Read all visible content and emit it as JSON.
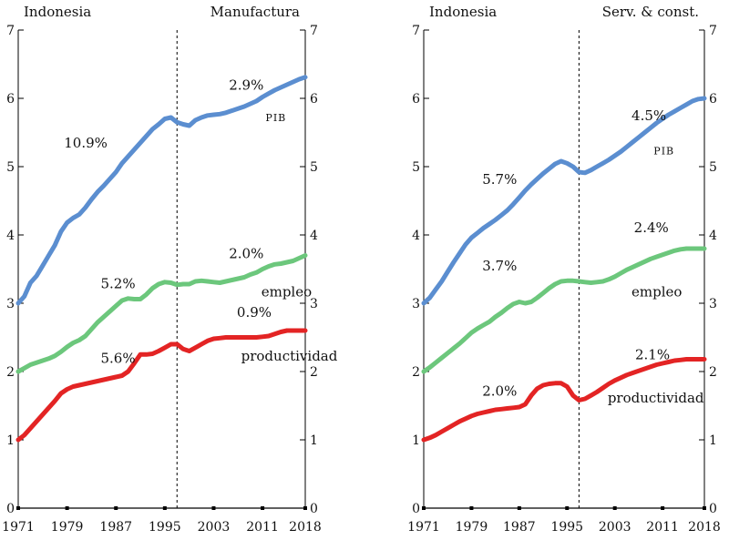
{
  "colors": {
    "pib": "#5b8ed0",
    "empleo": "#6cc77c",
    "productividad": "#e32424",
    "axis": "#000000"
  },
  "chart_data": [
    {
      "type": "line",
      "header_left": "Indonesia",
      "header_right": "Manufactura",
      "x_ticks": [
        "1971",
        "1979",
        "1987",
        "1995",
        "2003",
        "2011",
        "2018"
      ],
      "y_ticks": [
        "0",
        "1",
        "2",
        "3",
        "4",
        "5",
        "6",
        "7"
      ],
      "xlim": [
        1971,
        2018
      ],
      "ylim": [
        0,
        7
      ],
      "grid": false,
      "break_year": 1997,
      "series": [
        {
          "name": "PIB",
          "key": "pib",
          "x": [
            1971,
            1972,
            1973,
            1974,
            1975,
            1976,
            1977,
            1978,
            1979,
            1980,
            1981,
            1982,
            1983,
            1984,
            1985,
            1986,
            1987,
            1988,
            1989,
            1990,
            1991,
            1992,
            1993,
            1994,
            1995,
            1996,
            1997,
            1998,
            1999,
            2000,
            2001,
            2002,
            2003,
            2004,
            2005,
            2006,
            2007,
            2008,
            2009,
            2010,
            2011,
            2012,
            2013,
            2014,
            2015,
            2016,
            2017,
            2018
          ],
          "values": [
            3.0,
            3.1,
            3.3,
            3.4,
            3.55,
            3.7,
            3.85,
            4.05,
            4.18,
            4.25,
            4.3,
            4.4,
            4.52,
            4.63,
            4.72,
            4.82,
            4.92,
            5.05,
            5.15,
            5.25,
            5.35,
            5.45,
            5.55,
            5.62,
            5.7,
            5.72,
            5.65,
            5.62,
            5.6,
            5.68,
            5.72,
            5.75,
            5.76,
            5.77,
            5.79,
            5.82,
            5.85,
            5.88,
            5.92,
            5.96,
            6.02,
            6.07,
            6.12,
            6.16,
            6.2,
            6.24,
            6.28,
            6.31
          ]
        },
        {
          "name": "empleo",
          "key": "empleo",
          "x": [
            1971,
            1972,
            1973,
            1974,
            1975,
            1976,
            1977,
            1978,
            1979,
            1980,
            1981,
            1982,
            1983,
            1984,
            1985,
            1986,
            1987,
            1988,
            1989,
            1990,
            1991,
            1992,
            1993,
            1994,
            1995,
            1996,
            1997,
            1998,
            1999,
            2000,
            2001,
            2002,
            2003,
            2004,
            2005,
            2006,
            2007,
            2008,
            2009,
            2010,
            2011,
            2012,
            2013,
            2014,
            2015,
            2016,
            2017,
            2018
          ],
          "values": [
            2.0,
            2.05,
            2.1,
            2.13,
            2.16,
            2.19,
            2.23,
            2.29,
            2.36,
            2.42,
            2.46,
            2.52,
            2.62,
            2.72,
            2.8,
            2.88,
            2.96,
            3.04,
            3.07,
            3.06,
            3.06,
            3.13,
            3.22,
            3.28,
            3.31,
            3.3,
            3.27,
            3.28,
            3.28,
            3.32,
            3.33,
            3.32,
            3.31,
            3.3,
            3.32,
            3.34,
            3.36,
            3.38,
            3.42,
            3.45,
            3.5,
            3.54,
            3.57,
            3.58,
            3.6,
            3.62,
            3.66,
            3.7
          ]
        },
        {
          "name": "productividad",
          "key": "productividad",
          "x": [
            1971,
            1972,
            1973,
            1974,
            1975,
            1976,
            1977,
            1978,
            1979,
            1980,
            1981,
            1982,
            1983,
            1984,
            1985,
            1986,
            1987,
            1988,
            1989,
            1990,
            1991,
            1992,
            1993,
            1994,
            1995,
            1996,
            1997,
            1998,
            1999,
            2000,
            2001,
            2002,
            2003,
            2004,
            2005,
            2006,
            2007,
            2008,
            2009,
            2010,
            2011,
            2012,
            2013,
            2014,
            2015,
            2016,
            2017,
            2018
          ],
          "values": [
            1.0,
            1.07,
            1.17,
            1.27,
            1.37,
            1.47,
            1.57,
            1.68,
            1.74,
            1.78,
            1.8,
            1.82,
            1.84,
            1.86,
            1.88,
            1.9,
            1.92,
            1.94,
            2.0,
            2.12,
            2.25,
            2.25,
            2.26,
            2.3,
            2.35,
            2.4,
            2.4,
            2.33,
            2.3,
            2.35,
            2.4,
            2.45,
            2.48,
            2.49,
            2.5,
            2.5,
            2.5,
            2.5,
            2.5,
            2.5,
            2.51,
            2.52,
            2.55,
            2.58,
            2.6,
            2.6,
            2.6,
            2.6
          ]
        }
      ],
      "annotations": [
        {
          "text": "10.9%",
          "x": 1978.5,
          "y": 5.28
        },
        {
          "text": "2.9%",
          "x": 2005.5,
          "y": 6.13
        },
        {
          "text": "PIB",
          "x": 2011.5,
          "y": 5.67,
          "small": true
        },
        {
          "text": "5.2%",
          "x": 1984.5,
          "y": 3.22
        },
        {
          "text": "2.0%",
          "x": 2005.5,
          "y": 3.66
        },
        {
          "text": "empleo",
          "x": 2010.8,
          "y": 3.1
        },
        {
          "text": "5.6%",
          "x": 1984.5,
          "y": 2.13
        },
        {
          "text": "0.9%",
          "x": 2006.8,
          "y": 2.8
        },
        {
          "text": "productividad",
          "x": 2007.5,
          "y": 2.16
        }
      ]
    },
    {
      "type": "line",
      "header_left": "Indonesia",
      "header_right": "Serv. & const.",
      "x_ticks": [
        "1971",
        "1979",
        "1987",
        "1995",
        "2003",
        "2011",
        "2018"
      ],
      "y_ticks": [
        "0",
        "1",
        "2",
        "3",
        "4",
        "5",
        "6",
        "7"
      ],
      "xlim": [
        1971,
        2018
      ],
      "ylim": [
        0,
        7
      ],
      "grid": false,
      "break_year": 1997,
      "series": [
        {
          "name": "PIB",
          "key": "pib",
          "x": [
            1971,
            1972,
            1973,
            1974,
            1975,
            1976,
            1977,
            1978,
            1979,
            1980,
            1981,
            1982,
            1983,
            1984,
            1985,
            1986,
            1987,
            1988,
            1989,
            1990,
            1991,
            1992,
            1993,
            1994,
            1995,
            1996,
            1997,
            1998,
            1999,
            2000,
            2001,
            2002,
            2003,
            2004,
            2005,
            2006,
            2007,
            2008,
            2009,
            2010,
            2011,
            2012,
            2013,
            2014,
            2015,
            2016,
            2017,
            2018
          ],
          "values": [
            3.0,
            3.08,
            3.2,
            3.32,
            3.46,
            3.6,
            3.73,
            3.86,
            3.96,
            4.03,
            4.1,
            4.16,
            4.22,
            4.29,
            4.36,
            4.45,
            4.55,
            4.65,
            4.74,
            4.82,
            4.9,
            4.97,
            5.04,
            5.08,
            5.05,
            5.0,
            4.92,
            4.91,
            4.95,
            5.0,
            5.05,
            5.1,
            5.16,
            5.22,
            5.29,
            5.36,
            5.43,
            5.5,
            5.57,
            5.64,
            5.7,
            5.76,
            5.81,
            5.86,
            5.91,
            5.96,
            5.99,
            6.0
          ]
        },
        {
          "name": "empleo",
          "key": "empleo",
          "x": [
            1971,
            1972,
            1973,
            1974,
            1975,
            1976,
            1977,
            1978,
            1979,
            1980,
            1981,
            1982,
            1983,
            1984,
            1985,
            1986,
            1987,
            1988,
            1989,
            1990,
            1991,
            1992,
            1993,
            1994,
            1995,
            1996,
            1997,
            1998,
            1999,
            2000,
            2001,
            2002,
            2003,
            2004,
            2005,
            2006,
            2007,
            2008,
            2009,
            2010,
            2011,
            2012,
            2013,
            2014,
            2015,
            2016,
            2017,
            2018
          ],
          "values": [
            2.0,
            2.06,
            2.13,
            2.2,
            2.27,
            2.34,
            2.41,
            2.49,
            2.57,
            2.63,
            2.68,
            2.73,
            2.8,
            2.86,
            2.93,
            2.99,
            3.02,
            3.0,
            3.02,
            3.08,
            3.15,
            3.22,
            3.28,
            3.32,
            3.33,
            3.33,
            3.32,
            3.31,
            3.3,
            3.31,
            3.32,
            3.35,
            3.39,
            3.44,
            3.49,
            3.53,
            3.57,
            3.61,
            3.65,
            3.68,
            3.71,
            3.74,
            3.77,
            3.79,
            3.8,
            3.8,
            3.8,
            3.8
          ]
        },
        {
          "name": "productividad",
          "key": "productividad",
          "x": [
            1971,
            1972,
            1973,
            1974,
            1975,
            1976,
            1977,
            1978,
            1979,
            1980,
            1981,
            1982,
            1983,
            1984,
            1985,
            1986,
            1987,
            1988,
            1989,
            1990,
            1991,
            1992,
            1993,
            1994,
            1995,
            1996,
            1997,
            1998,
            1999,
            2000,
            2001,
            2002,
            2003,
            2004,
            2005,
            2006,
            2007,
            2008,
            2009,
            2010,
            2011,
            2012,
            2013,
            2014,
            2015,
            2016,
            2017,
            2018
          ],
          "values": [
            1.0,
            1.03,
            1.07,
            1.12,
            1.17,
            1.22,
            1.27,
            1.31,
            1.35,
            1.38,
            1.4,
            1.42,
            1.44,
            1.45,
            1.46,
            1.47,
            1.48,
            1.52,
            1.65,
            1.75,
            1.8,
            1.82,
            1.83,
            1.83,
            1.78,
            1.65,
            1.58,
            1.6,
            1.65,
            1.7,
            1.76,
            1.82,
            1.87,
            1.91,
            1.95,
            1.98,
            2.01,
            2.04,
            2.07,
            2.1,
            2.12,
            2.14,
            2.16,
            2.17,
            2.18,
            2.18,
            2.18,
            2.18
          ]
        }
      ],
      "annotations": [
        {
          "text": "5.7%",
          "x": 1980.8,
          "y": 4.75
        },
        {
          "text": "4.5%",
          "x": 2005.8,
          "y": 5.68
        },
        {
          "text": "PIB",
          "x": 2009.5,
          "y": 5.18,
          "small": true
        },
        {
          "text": "3.7%",
          "x": 1980.8,
          "y": 3.48
        },
        {
          "text": "2.4%",
          "x": 2006.2,
          "y": 4.04
        },
        {
          "text": "empleo",
          "x": 2005.8,
          "y": 3.1
        },
        {
          "text": "2.0%",
          "x": 1980.8,
          "y": 1.65
        },
        {
          "text": "2.1%",
          "x": 2006.4,
          "y": 2.18
        },
        {
          "text": "productividad",
          "x": 2001.8,
          "y": 1.55
        }
      ]
    }
  ]
}
